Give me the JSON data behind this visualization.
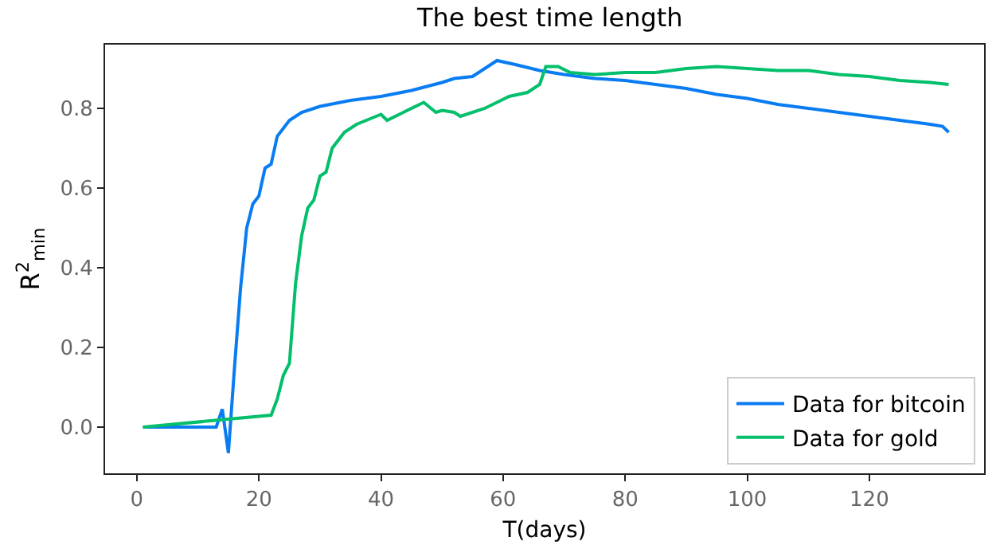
{
  "chart_data": {
    "type": "line",
    "title": "The best time length",
    "xlabel": "T(days)",
    "ylabel": "R$^{2}$$_{min}$",
    "xlim": [
      -5.2,
      138.8
    ],
    "ylim": [
      -0.116,
      0.96
    ],
    "xticks": [
      0,
      20,
      40,
      60,
      80,
      100,
      120
    ],
    "yticks": [
      {
        "value": 0,
        "label": "0.0"
      },
      0.2,
      0.4,
      0.6,
      0.8
    ],
    "grid": false,
    "legend": "bottom right",
    "line_style": "solid",
    "marker": "none",
    "series": [
      {
        "name": "Data for bitcoin",
        "color": "#0a7cf2",
        "x": [
          1,
          13,
          14,
          15,
          16,
          17,
          18,
          19,
          20,
          21,
          22,
          23,
          25,
          27,
          30,
          35,
          40,
          45,
          50,
          52,
          55,
          57,
          59,
          62,
          66,
          70,
          75,
          80,
          85,
          90,
          95,
          100,
          105,
          110,
          115,
          120,
          125,
          130,
          132,
          133
        ],
        "values": [
          0,
          0,
          0.045,
          -0.065,
          0.15,
          0.35,
          0.5,
          0.56,
          0.58,
          0.65,
          0.66,
          0.73,
          0.77,
          0.79,
          0.805,
          0.82,
          0.83,
          0.845,
          0.865,
          0.875,
          0.88,
          0.9,
          0.92,
          0.91,
          0.895,
          0.885,
          0.875,
          0.87,
          0.86,
          0.85,
          0.835,
          0.825,
          0.81,
          0.8,
          0.79,
          0.78,
          0.77,
          0.76,
          0.755,
          0.74
        ]
      },
      {
        "name": "Data for gold",
        "color": "#03bf6b",
        "x": [
          1,
          22,
          23,
          24,
          25,
          26,
          27,
          28,
          29,
          30,
          31,
          32,
          34,
          36,
          40,
          41,
          43,
          47,
          49,
          50,
          52,
          53,
          57,
          61,
          64,
          66,
          67,
          69,
          71,
          75,
          80,
          85,
          90,
          95,
          100,
          105,
          110,
          115,
          120,
          125,
          130,
          133
        ],
        "values": [
          0,
          0.03,
          0.07,
          0.13,
          0.16,
          0.36,
          0.48,
          0.55,
          0.57,
          0.63,
          0.64,
          0.7,
          0.74,
          0.76,
          0.785,
          0.77,
          0.785,
          0.815,
          0.79,
          0.795,
          0.79,
          0.78,
          0.8,
          0.83,
          0.84,
          0.86,
          0.905,
          0.905,
          0.89,
          0.885,
          0.89,
          0.89,
          0.9,
          0.905,
          0.9,
          0.895,
          0.895,
          0.885,
          0.88,
          0.87,
          0.865,
          0.86
        ]
      }
    ]
  }
}
